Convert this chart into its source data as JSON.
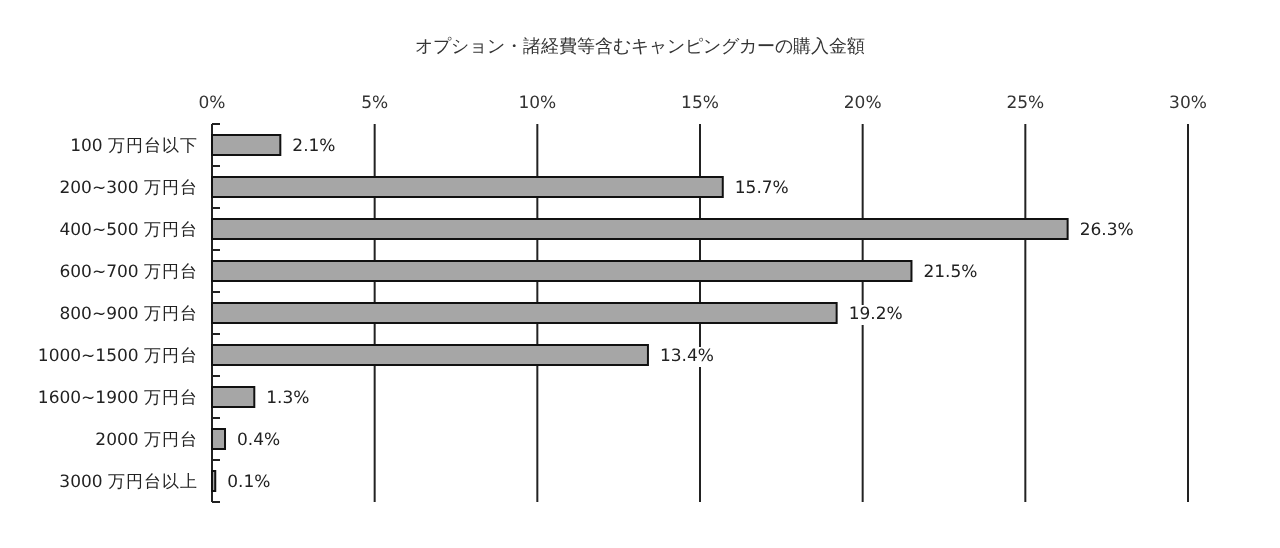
{
  "chart_data": {
    "type": "bar",
    "orientation": "horizontal",
    "title": "オプション・諸経費等含むキャンピングカーの購入金額",
    "categories": [
      "100 万円台以下",
      "200~300 万円台",
      "400~500 万円台",
      "600~700 万円台",
      "800~900 万円台",
      "1000~1500 万円台",
      "1600~1900 万円台",
      "2000 万円台",
      "3000 万円台以上"
    ],
    "values": [
      2.1,
      15.7,
      26.3,
      21.5,
      19.2,
      13.4,
      1.3,
      0.4,
      0.1
    ],
    "value_labels": [
      "2.1%",
      "15.7%",
      "26.3%",
      "21.5%",
      "19.2%",
      "13.4%",
      "1.3%",
      "0.4%",
      "0.1%"
    ],
    "color": "#a6a6a6",
    "xlim": [
      0,
      30
    ],
    "xticks": [
      {
        "value": 0,
        "label": "0%"
      },
      {
        "value": 5,
        "label": "5%"
      },
      {
        "value": 10,
        "label": "10%"
      },
      {
        "value": 15,
        "label": "15%"
      },
      {
        "value": 20,
        "label": "20%"
      },
      {
        "value": 25,
        "label": "25%"
      },
      {
        "value": 30,
        "label": "30%"
      }
    ],
    "grid": "x"
  }
}
